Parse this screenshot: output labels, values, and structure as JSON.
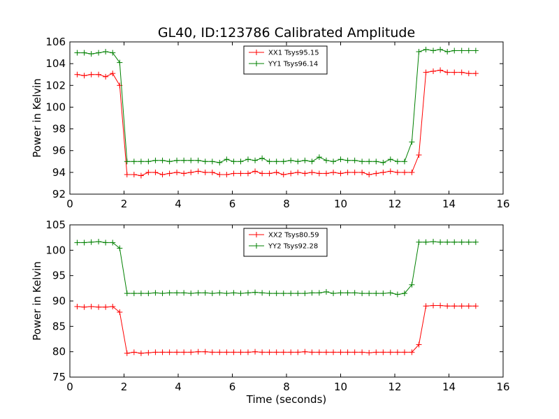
{
  "figure_title": "GL40, ID:123786 Calibrated Amplitude",
  "colors": {
    "XX": "#ff0000",
    "YY": "#008000"
  },
  "chart_data": [
    {
      "type": "line",
      "title": "GL40, ID:123786 Calibrated Amplitude",
      "xlabel": "",
      "ylabel": "Power in Kelvin",
      "xlim": [
        0,
        16
      ],
      "ylim": [
        92,
        106
      ],
      "xticks": [
        "0",
        "2",
        "4",
        "6",
        "8",
        "10",
        "12",
        "14",
        "16"
      ],
      "yticks": [
        "92",
        "94",
        "96",
        "98",
        "100",
        "102",
        "104",
        "106"
      ],
      "legend_position": "top-center",
      "grid": false,
      "x": [
        0.27,
        0.53,
        0.79,
        1.06,
        1.32,
        1.58,
        1.84,
        2.11,
        2.37,
        2.63,
        2.9,
        3.16,
        3.42,
        3.68,
        3.95,
        4.21,
        4.47,
        4.74,
        5.0,
        5.26,
        5.53,
        5.79,
        6.05,
        6.31,
        6.58,
        6.84,
        7.1,
        7.37,
        7.63,
        7.89,
        8.16,
        8.42,
        8.68,
        8.94,
        9.21,
        9.47,
        9.73,
        10.0,
        10.26,
        10.52,
        10.79,
        11.05,
        11.31,
        11.57,
        11.84,
        12.1,
        12.36,
        12.63,
        12.89,
        13.15,
        13.42,
        13.68,
        13.94,
        14.2,
        14.47,
        14.73,
        14.99
      ],
      "series": [
        {
          "name": "XX1 Tsys95.15",
          "color": "#ff0000",
          "values": [
            103.0,
            102.9,
            103.0,
            103.0,
            102.8,
            103.1,
            102.0,
            93.8,
            93.8,
            93.7,
            94.0,
            94.0,
            93.8,
            93.9,
            94.0,
            93.9,
            94.0,
            94.1,
            94.0,
            94.0,
            93.8,
            93.8,
            93.9,
            93.9,
            93.9,
            94.1,
            93.9,
            93.9,
            94.0,
            93.8,
            93.9,
            94.0,
            93.9,
            94.0,
            93.9,
            93.9,
            94.0,
            93.9,
            94.0,
            94.0,
            94.0,
            93.8,
            93.9,
            94.0,
            94.1,
            94.0,
            94.0,
            94.0,
            95.6,
            103.2,
            103.3,
            103.4,
            103.2,
            103.2,
            103.2,
            103.1,
            103.1
          ]
        },
        {
          "name": "YY1 Tsys96.14",
          "color": "#008000",
          "values": [
            105.0,
            105.0,
            104.9,
            105.0,
            105.1,
            105.0,
            104.1,
            95.0,
            95.0,
            95.0,
            95.0,
            95.1,
            95.1,
            95.0,
            95.1,
            95.1,
            95.1,
            95.1,
            95.0,
            95.0,
            94.9,
            95.2,
            95.0,
            95.0,
            95.2,
            95.1,
            95.3,
            95.0,
            95.0,
            95.0,
            95.1,
            95.0,
            95.1,
            95.0,
            95.4,
            95.1,
            95.0,
            95.2,
            95.1,
            95.1,
            95.0,
            95.0,
            95.0,
            94.9,
            95.2,
            95.0,
            95.0,
            96.8,
            105.1,
            105.3,
            105.2,
            105.3,
            105.1,
            105.2,
            105.2,
            105.2,
            105.2
          ]
        }
      ]
    },
    {
      "type": "line",
      "title": "",
      "xlabel": "Time (seconds)",
      "ylabel": "Power in Kelvin",
      "xlim": [
        0,
        16
      ],
      "ylim": [
        75,
        105
      ],
      "xticks": [
        "0",
        "2",
        "4",
        "6",
        "8",
        "10",
        "12",
        "14",
        "16"
      ],
      "yticks": [
        "75",
        "80",
        "85",
        "90",
        "95",
        "100",
        "105"
      ],
      "legend_position": "top-center",
      "grid": false,
      "x": [
        0.27,
        0.53,
        0.79,
        1.06,
        1.32,
        1.58,
        1.84,
        2.11,
        2.37,
        2.63,
        2.9,
        3.16,
        3.42,
        3.68,
        3.95,
        4.21,
        4.47,
        4.74,
        5.0,
        5.26,
        5.53,
        5.79,
        6.05,
        6.31,
        6.58,
        6.84,
        7.1,
        7.37,
        7.63,
        7.89,
        8.16,
        8.42,
        8.68,
        8.94,
        9.21,
        9.47,
        9.73,
        10.0,
        10.26,
        10.52,
        10.79,
        11.05,
        11.31,
        11.57,
        11.84,
        12.1,
        12.36,
        12.63,
        12.89,
        13.15,
        13.42,
        13.68,
        13.94,
        14.2,
        14.47,
        14.73,
        14.99
      ],
      "series": [
        {
          "name": "XX2 Tsys80.59",
          "color": "#ff0000",
          "values": [
            88.9,
            88.8,
            88.9,
            88.8,
            88.8,
            88.9,
            87.8,
            79.7,
            79.9,
            79.7,
            79.8,
            79.9,
            79.9,
            79.9,
            79.9,
            79.9,
            79.9,
            80.0,
            80.0,
            79.9,
            79.9,
            79.9,
            79.9,
            79.9,
            79.9,
            80.0,
            79.9,
            79.9,
            79.9,
            79.9,
            79.9,
            79.9,
            80.0,
            79.9,
            79.9,
            79.9,
            79.9,
            79.9,
            79.9,
            79.9,
            79.9,
            79.8,
            79.9,
            79.9,
            79.9,
            79.9,
            79.9,
            79.9,
            81.4,
            89.0,
            89.1,
            89.1,
            89.0,
            89.0,
            89.0,
            89.0,
            89.0
          ]
        },
        {
          "name": "YY2 Tsys92.28",
          "color": "#008000",
          "values": [
            101.5,
            101.5,
            101.6,
            101.7,
            101.5,
            101.5,
            100.4,
            91.5,
            91.5,
            91.5,
            91.5,
            91.6,
            91.5,
            91.6,
            91.6,
            91.6,
            91.5,
            91.6,
            91.6,
            91.5,
            91.6,
            91.5,
            91.6,
            91.5,
            91.6,
            91.7,
            91.6,
            91.5,
            91.5,
            91.5,
            91.5,
            91.5,
            91.5,
            91.6,
            91.6,
            91.8,
            91.5,
            91.6,
            91.6,
            91.6,
            91.5,
            91.5,
            91.5,
            91.5,
            91.6,
            91.3,
            91.5,
            93.2,
            101.6,
            101.6,
            101.7,
            101.6,
            101.6,
            101.6,
            101.6,
            101.6,
            101.6
          ]
        }
      ]
    }
  ]
}
